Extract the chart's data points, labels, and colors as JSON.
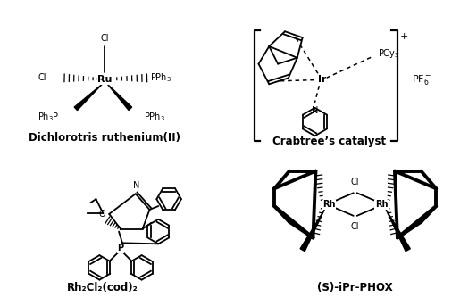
{
  "bg_color": "#ffffff",
  "labels": {
    "top_left": "Dichlorotris ruthenium(II)",
    "top_right": "Crabtree’s catalyst",
    "bottom_left": "Rh₂Cl₂(cod)₂",
    "bottom_right": "(S)-iPr-PHOX"
  },
  "label_fontsize": 8.5,
  "label_fontweight": "bold",
  "figsize": [
    5.15,
    3.43
  ],
  "dpi": 100
}
